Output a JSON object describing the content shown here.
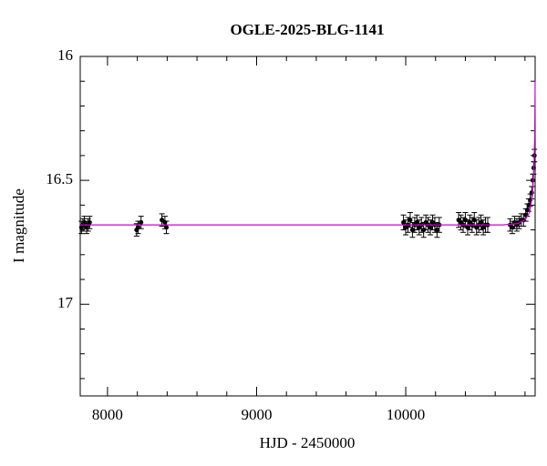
{
  "chart_data": {
    "type": "scatter",
    "title": "OGLE-2025-BLG-1141",
    "x_label": "HJD - 2450000",
    "y_label": "I magnitude",
    "xlim": [
      7817,
      10868
    ],
    "ylim": [
      16,
      17.37
    ],
    "y_inverted": true,
    "xticks": [
      8000,
      9000,
      10000
    ],
    "yticks": [
      16,
      16.5,
      17
    ],
    "xminorticks": [
      8200,
      8400,
      8600,
      8800,
      9200,
      9400,
      9600,
      9800,
      10200,
      10400,
      10600,
      10800
    ],
    "yminorticks": [
      16.1,
      16.2,
      16.3,
      16.4,
      16.6,
      16.7,
      16.8,
      16.9,
      17.1,
      17.2,
      17.3
    ],
    "series": [
      {
        "type": "scatter",
        "color": "#000000",
        "x": [
          7825,
          7835,
          7845,
          7860,
          7870,
          7880,
          8195,
          8205,
          8225,
          8365,
          8385,
          8395,
          9985,
          10000,
          10015,
          10030,
          10045,
          10060,
          10075,
          10090,
          10105,
          10120,
          10135,
          10150,
          10165,
          10180,
          10195,
          10210,
          10225,
          10355,
          10370,
          10385,
          10400,
          10415,
          10430,
          10445,
          10460,
          10475,
          10490,
          10505,
          10520,
          10535,
          10550,
          10700,
          10715,
          10730,
          10745,
          10760,
          10775,
          10790,
          10805,
          10815,
          10825,
          10835,
          10845,
          10852,
          10858,
          10863
        ],
        "values": [
          16.69,
          16.68,
          16.67,
          16.69,
          16.68,
          16.67,
          16.7,
          16.69,
          16.67,
          16.66,
          16.67,
          16.69,
          16.67,
          16.69,
          16.68,
          16.66,
          16.7,
          16.68,
          16.67,
          16.69,
          16.68,
          16.7,
          16.67,
          16.68,
          16.69,
          16.67,
          16.68,
          16.7,
          16.68,
          16.66,
          16.67,
          16.68,
          16.66,
          16.69,
          16.67,
          16.68,
          16.66,
          16.69,
          16.68,
          16.67,
          16.69,
          16.68,
          16.68,
          16.68,
          16.69,
          16.67,
          16.68,
          16.67,
          16.66,
          16.66,
          16.64,
          16.62,
          16.6,
          16.58,
          16.55,
          16.5,
          16.45,
          16.4
        ],
        "errors": [
          0.025,
          0.025,
          0.025,
          0.025,
          0.025,
          0.025,
          0.025,
          0.025,
          0.025,
          0.025,
          0.025,
          0.025,
          0.03,
          0.03,
          0.03,
          0.03,
          0.03,
          0.03,
          0.03,
          0.03,
          0.03,
          0.03,
          0.03,
          0.03,
          0.03,
          0.03,
          0.03,
          0.03,
          0.03,
          0.03,
          0.03,
          0.03,
          0.03,
          0.03,
          0.03,
          0.03,
          0.03,
          0.03,
          0.03,
          0.03,
          0.03,
          0.03,
          0.03,
          0.025,
          0.025,
          0.025,
          0.025,
          0.025,
          0.025,
          0.025,
          0.025,
          0.025,
          0.025,
          0.025,
          0.025,
          0.025,
          0.025,
          0.025
        ]
      },
      {
        "type": "line",
        "color": "#d000d0",
        "x": [
          7817,
          10650,
          10750,
          10800,
          10830,
          10850,
          10860,
          10865,
          10868
        ],
        "values": [
          16.68,
          16.68,
          16.675,
          16.66,
          16.63,
          16.56,
          16.45,
          16.32,
          16.1
        ]
      }
    ]
  }
}
